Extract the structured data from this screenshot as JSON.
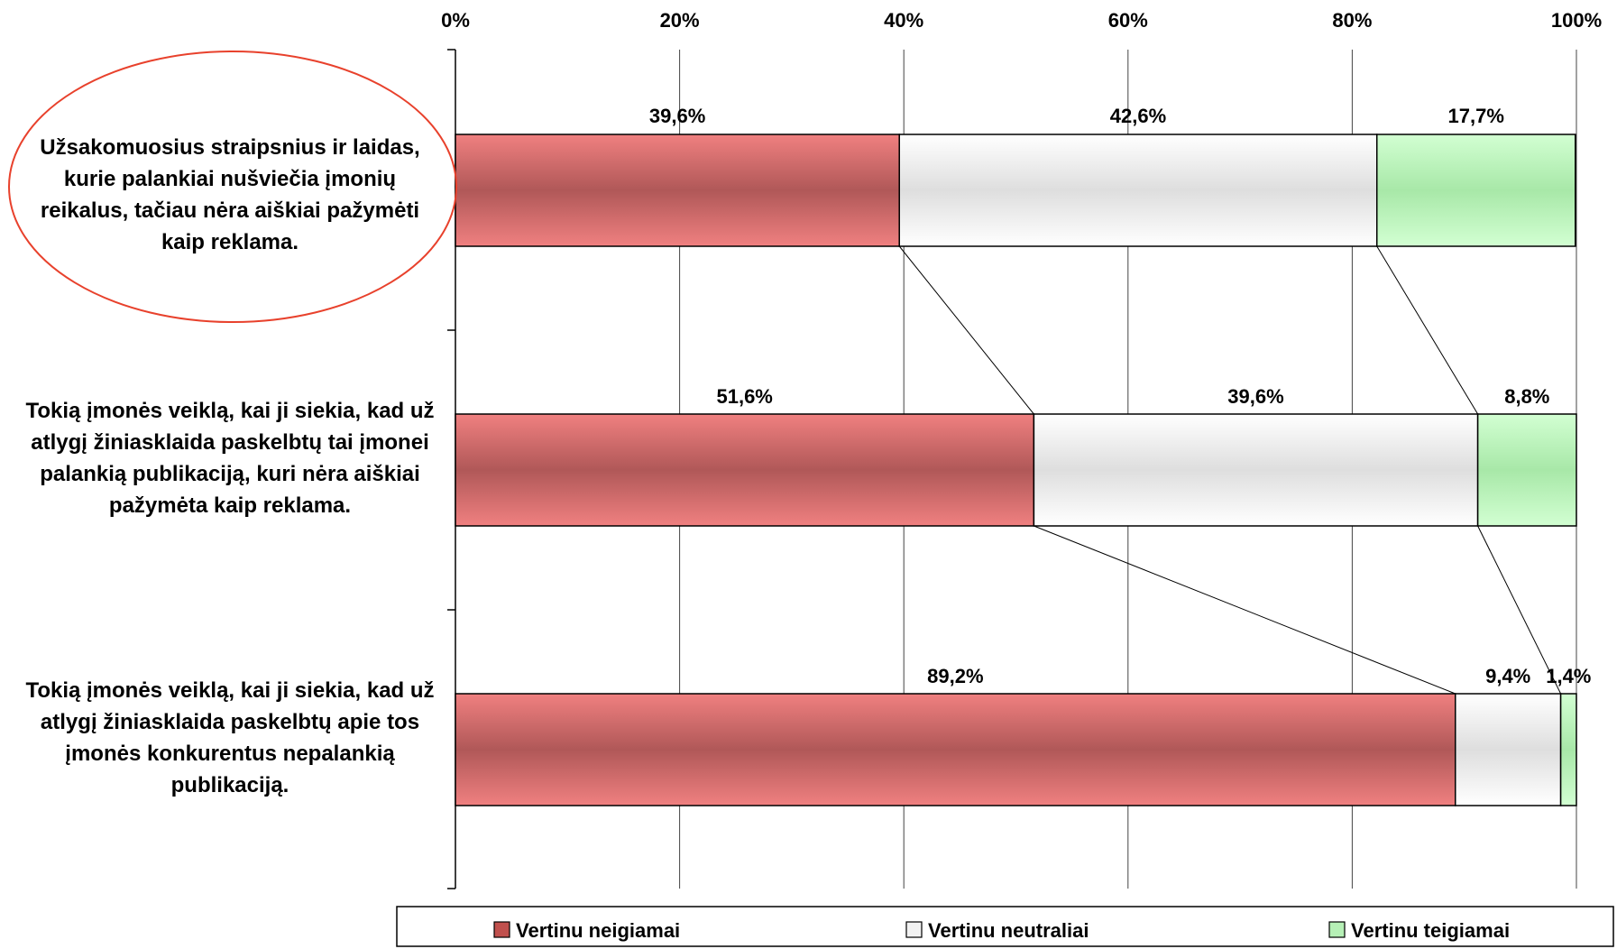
{
  "chart_data": {
    "type": "bar",
    "orientation": "horizontal",
    "stacked": true,
    "normalized": true,
    "xlim": [
      0,
      100
    ],
    "x_ticks": [
      "0%",
      "20%",
      "40%",
      "60%",
      "80%",
      "100%"
    ],
    "categories": [
      "Užsakomuosius straipsnius ir laidas, kurie palankiai nušviečia įmonių reikalus, tačiau nėra aiškiai pažymėti kaip reklama.",
      "Tokią įmonės veiklą, kai ji siekia, kad už atlygį žiniasklaida paskelbtų tai įmonei palankią publikaciją, kuri nėra aiškiai pažymėta kaip reklama.",
      "Tokią įmonės veiklą, kai ji siekia, kad už atlygį žiniasklaida paskelbtų apie tos įmonės konkurentus nepalankią publikaciją."
    ],
    "series": [
      {
        "name": "Vertinu neigiamai",
        "color": "#c0504d",
        "values": [
          39.6,
          51.6,
          89.2
        ],
        "labels": [
          "39,6%",
          "51,6%",
          "89,2%"
        ]
      },
      {
        "name": "Vertinu neutraliai",
        "color": "#f2f2f2",
        "values": [
          42.6,
          39.6,
          9.4
        ],
        "labels": [
          "42,6%",
          "39,6%",
          "9,4%"
        ]
      },
      {
        "name": "Vertinu teigiamai",
        "color": "#b6f0b6",
        "values": [
          17.7,
          8.8,
          1.4
        ],
        "labels": [
          "17,7%",
          "8,8%",
          "1,4%"
        ]
      }
    ],
    "grid": true,
    "series_lines": true,
    "highlighted_category": 0,
    "highlight_color": "#e8412c",
    "legend_position": "bottom"
  }
}
